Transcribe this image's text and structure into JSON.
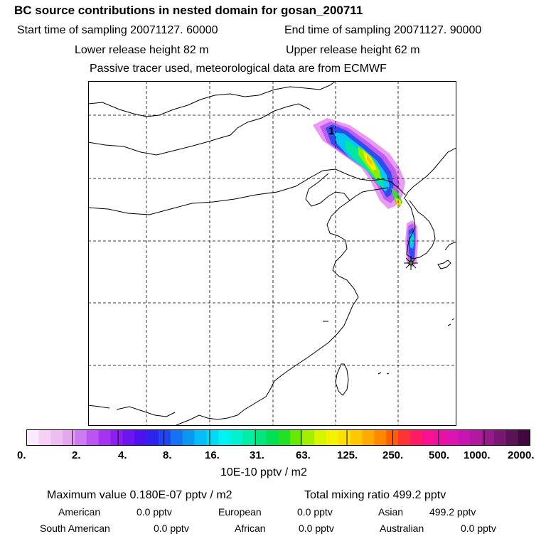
{
  "header": {
    "title": "BC  source contributions in nested domain for gosan_200711",
    "start_label": "Start time of sampling 20071127. 60000",
    "end_label": "End time of sampling 20071127. 90000",
    "lower_release": "Lower release height   82 m",
    "upper_release": "Upper release height   62 m",
    "tracer_note": "Passive tracer used, meteorological data are from ECMWF"
  },
  "map": {
    "marker_label": "1",
    "colors": {
      "background": "#ffffff",
      "coastline": "#000000",
      "grid": "#000000",
      "receptor_marker": "#2f8f2f"
    }
  },
  "colorbar": {
    "ticks": [
      "0.",
      "2.",
      "4.",
      "8.",
      "16.",
      "31.",
      "63.",
      "125.",
      "250.",
      "500.",
      "1000.",
      "2000."
    ],
    "colors": [
      "#fbeafb",
      "#f5d2f5",
      "#eebdf0",
      "#e7a6ee",
      "#cc7af0",
      "#bb55f2",
      "#a633f2",
      "#8f1ef2",
      "#6e14f0",
      "#4f10ef",
      "#2e22ef",
      "#1e46f2",
      "#1471f2",
      "#0a97f2",
      "#05bcf4",
      "#00d9f4",
      "#00f2f2",
      "#00f2d0",
      "#00efa6",
      "#00e67d",
      "#00e055",
      "#22e022",
      "#66e800",
      "#a3ef00",
      "#d7f500",
      "#f5f200",
      "#ffe000",
      "#ffc800",
      "#ffaa00",
      "#ff8800",
      "#ff5f00",
      "#ff3333",
      "#ff1a66",
      "#f71090",
      "#ea10a3",
      "#dc14b0",
      "#c814b0",
      "#b11a9f",
      "#951a8a",
      "#781872",
      "#5c1258",
      "#40083f"
    ],
    "units": "10E-10 pptv / m2"
  },
  "summary": {
    "max_value": "Maximum value  0.180E-07 pptv / m2",
    "total_mixing": "Total mixing ratio      499.2 pptv",
    "american_label": "American",
    "american_value": "0.0 pptv",
    "european_label": "European",
    "european_value": "0.0 pptv",
    "asian_label": "Asian",
    "asian_value": "499.2 pptv",
    "south_american_label": "South American",
    "south_american_value": "0.0 pptv",
    "african_label": "African",
    "african_value": "0.0 pptv",
    "australian_label": "Australian",
    "australian_value": "0.0 pptv"
  }
}
